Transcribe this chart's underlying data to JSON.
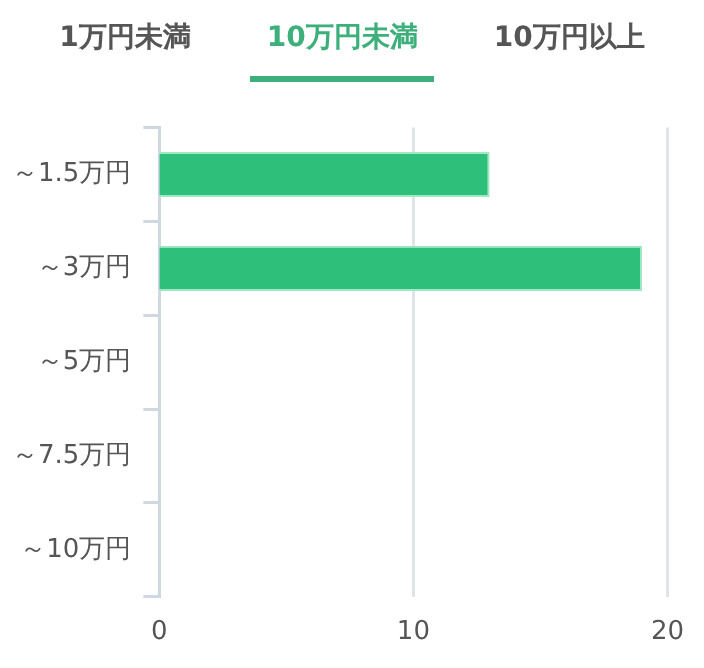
{
  "chart_data": {
    "type": "bar",
    "orientation": "horizontal",
    "annotations": [
      "1万円未満",
      "10万円未満",
      "10万円以上"
    ],
    "categories": [
      "～1.5万円",
      "～3万円",
      "～5万円",
      "～7.5万円",
      "～10万円"
    ],
    "values": [
      13,
      19,
      0,
      0,
      0
    ],
    "color": "#2ec07a",
    "xlim": [
      0,
      20
    ],
    "xticks": [
      0,
      10,
      20
    ],
    "grid": "x"
  }
}
